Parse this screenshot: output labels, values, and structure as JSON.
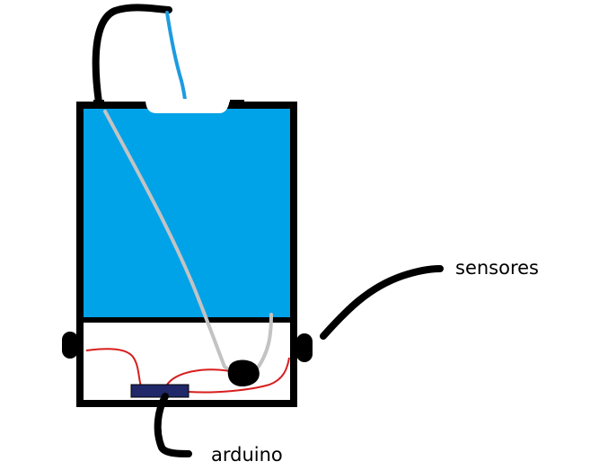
{
  "labels": {
    "sensores": "sensores",
    "arduino": "arduino"
  },
  "colors": {
    "outline": "#000000",
    "water": "#00A2E8",
    "blue_wire": "#1E9BE0",
    "gray_wire": "#C3C3C3",
    "red_wire": "#D81E1E",
    "arduino_board": "#20286A",
    "background": "#FFFFFF"
  }
}
